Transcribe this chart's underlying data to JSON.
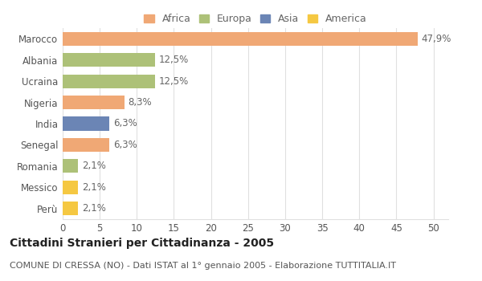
{
  "categories": [
    "Marocco",
    "Albania",
    "Ucraina",
    "Nigeria",
    "India",
    "Senegal",
    "Romania",
    "Messico",
    "Perù"
  ],
  "values": [
    47.9,
    12.5,
    12.5,
    8.3,
    6.3,
    6.3,
    2.1,
    2.1,
    2.1
  ],
  "labels": [
    "47,9%",
    "12,5%",
    "12,5%",
    "8,3%",
    "6,3%",
    "6,3%",
    "2,1%",
    "2,1%",
    "2,1%"
  ],
  "colors": [
    "#f0a875",
    "#adc178",
    "#adc178",
    "#f0a875",
    "#6b85b5",
    "#f0a875",
    "#adc178",
    "#f5c842",
    "#f5c842"
  ],
  "legend_labels": [
    "Africa",
    "Europa",
    "Asia",
    "America"
  ],
  "legend_colors": [
    "#f0a875",
    "#adc178",
    "#6b85b5",
    "#f5c842"
  ],
  "title": "Cittadini Stranieri per Cittadinanza - 2005",
  "subtitle": "COMUNE DI CRESSA (NO) - Dati ISTAT al 1° gennaio 2005 - Elaborazione TUTTITALIA.IT",
  "xlim": [
    0,
    52
  ],
  "xticks": [
    0,
    5,
    10,
    15,
    20,
    25,
    30,
    35,
    40,
    45,
    50
  ],
  "bg_color": "#ffffff",
  "grid_color": "#e0e0e0",
  "bar_height": 0.65,
  "title_fontsize": 10,
  "subtitle_fontsize": 8,
  "tick_fontsize": 8.5,
  "label_fontsize": 8.5,
  "legend_fontsize": 9
}
